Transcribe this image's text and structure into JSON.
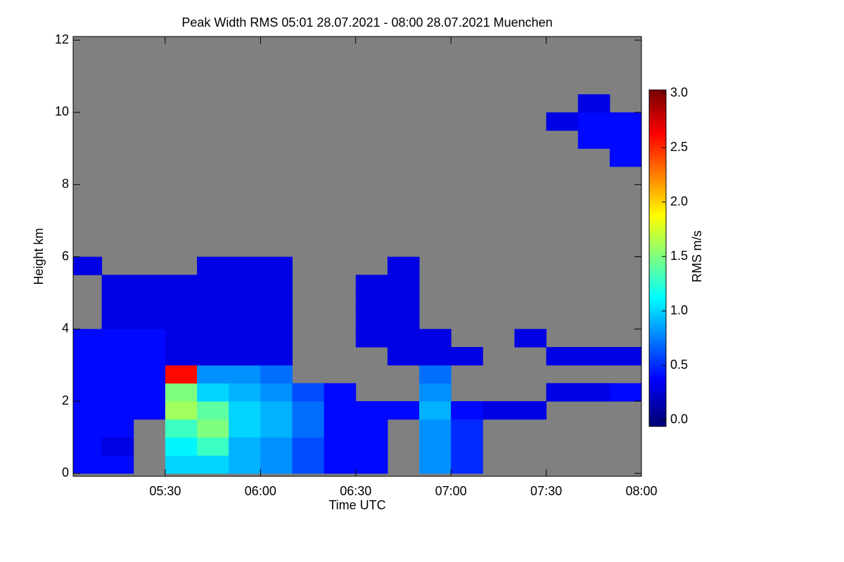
{
  "chart_data": {
    "type": "heatmap",
    "title": "Peak Width RMS   05:01 28.07.2021 - 08:00 28.07.2021 Muenchen",
    "xlabel": "Time UTC",
    "ylabel": "Height km",
    "colorbar_label": "RMS m/s",
    "background": "#808080",
    "colorscale": [
      "#00007f",
      "#0000ff",
      "#007fff",
      "#00ffff",
      "#7fff7f",
      "#ffff00",
      "#ff7f00",
      "#ff0000",
      "#7f0000"
    ],
    "x": [
      305,
      315,
      325,
      335,
      345,
      355,
      365,
      375,
      385,
      395,
      405,
      415,
      425,
      435,
      445,
      455,
      465,
      475
    ],
    "x_bin": 10,
    "y": [
      0.25,
      0.75,
      1.25,
      1.75,
      2.25,
      2.75,
      3.25,
      3.75,
      4.25,
      4.75,
      5.25,
      5.75,
      6.25,
      6.75,
      7.25,
      7.75,
      8.25,
      8.75,
      9.25,
      9.75,
      10.25,
      10.75,
      11.25,
      11.75
    ],
    "y_bin": 0.5,
    "z": [
      [
        0.4,
        0.4,
        null,
        1.0,
        1.0,
        0.9,
        0.8,
        0.6,
        0.4,
        0.4,
        null,
        0.8,
        0.5,
        null,
        null,
        null,
        null,
        null
      ],
      [
        0.4,
        0.3,
        null,
        1.1,
        1.3,
        0.9,
        0.8,
        0.6,
        0.4,
        0.4,
        null,
        0.8,
        0.5,
        null,
        null,
        null,
        null,
        null
      ],
      [
        0.4,
        0.4,
        null,
        1.3,
        1.5,
        1.0,
        0.9,
        0.7,
        0.4,
        0.4,
        null,
        0.8,
        0.5,
        null,
        null,
        null,
        null,
        null
      ],
      [
        0.4,
        0.4,
        0.4,
        1.6,
        1.4,
        1.0,
        0.9,
        0.7,
        0.4,
        0.4,
        0.4,
        0.9,
        0.4,
        0.3,
        0.3,
        null,
        null,
        null
      ],
      [
        0.4,
        0.4,
        0.4,
        1.5,
        1.0,
        0.9,
        0.8,
        0.6,
        0.4,
        null,
        null,
        0.8,
        null,
        null,
        null,
        0.3,
        0.3,
        0.4
      ],
      [
        0.4,
        0.4,
        0.4,
        2.6,
        0.8,
        0.8,
        0.7,
        null,
        null,
        null,
        null,
        0.7,
        null,
        null,
        null,
        null,
        null,
        null
      ],
      [
        0.4,
        0.4,
        0.4,
        0.3,
        0.3,
        0.3,
        0.3,
        null,
        null,
        null,
        0.3,
        0.3,
        0.3,
        null,
        null,
        0.3,
        0.3,
        0.3
      ],
      [
        0.4,
        0.4,
        0.4,
        0.3,
        0.3,
        0.3,
        0.3,
        null,
        null,
        0.3,
        0.3,
        0.3,
        null,
        null,
        0.3,
        null,
        null,
        null
      ],
      [
        null,
        0.3,
        0.3,
        0.3,
        0.3,
        0.3,
        0.3,
        null,
        null,
        0.3,
        0.3,
        null,
        null,
        null,
        null,
        null,
        null,
        null
      ],
      [
        null,
        0.3,
        0.3,
        0.3,
        0.3,
        0.3,
        0.3,
        null,
        null,
        0.3,
        0.3,
        null,
        null,
        null,
        null,
        null,
        null,
        null
      ],
      [
        null,
        0.3,
        0.3,
        0.3,
        0.3,
        0.3,
        0.3,
        null,
        null,
        0.3,
        0.3,
        null,
        null,
        null,
        null,
        null,
        null,
        null
      ],
      [
        0.3,
        null,
        null,
        null,
        0.3,
        0.3,
        0.3,
        null,
        null,
        null,
        0.3,
        null,
        null,
        null,
        null,
        null,
        null,
        null
      ],
      [
        null,
        null,
        null,
        null,
        null,
        null,
        null,
        null,
        null,
        null,
        null,
        null,
        null,
        null,
        null,
        null,
        null,
        null
      ],
      [
        null,
        null,
        null,
        null,
        null,
        null,
        null,
        null,
        null,
        null,
        null,
        null,
        null,
        null,
        null,
        null,
        null,
        null
      ],
      [
        null,
        null,
        null,
        null,
        null,
        null,
        null,
        null,
        null,
        null,
        null,
        null,
        null,
        null,
        null,
        null,
        null,
        null
      ],
      [
        null,
        null,
        null,
        null,
        null,
        null,
        null,
        null,
        null,
        null,
        null,
        null,
        null,
        null,
        null,
        null,
        null,
        null
      ],
      [
        null,
        null,
        null,
        null,
        null,
        null,
        null,
        null,
        null,
        null,
        null,
        null,
        null,
        null,
        null,
        null,
        null,
        null
      ],
      [
        null,
        null,
        null,
        null,
        null,
        null,
        null,
        null,
        null,
        null,
        null,
        null,
        null,
        null,
        null,
        null,
        null,
        0.4
      ],
      [
        null,
        null,
        null,
        null,
        null,
        null,
        null,
        null,
        null,
        null,
        null,
        null,
        null,
        null,
        null,
        null,
        0.4,
        0.4
      ],
      [
        null,
        null,
        null,
        null,
        null,
        null,
        null,
        null,
        null,
        null,
        null,
        null,
        null,
        null,
        null,
        0.3,
        0.4,
        0.4
      ],
      [
        null,
        null,
        null,
        null,
        null,
        null,
        null,
        null,
        null,
        null,
        null,
        null,
        null,
        null,
        null,
        null,
        0.3,
        null
      ],
      [
        null,
        null,
        null,
        null,
        null,
        null,
        null,
        null,
        null,
        null,
        null,
        null,
        null,
        null,
        null,
        null,
        null,
        null
      ],
      [
        null,
        null,
        null,
        null,
        null,
        null,
        null,
        null,
        null,
        null,
        null,
        null,
        null,
        null,
        null,
        null,
        null,
        null
      ],
      [
        null,
        null,
        null,
        null,
        null,
        null,
        null,
        null,
        null,
        null,
        null,
        null,
        null,
        null,
        null,
        null,
        null,
        null
      ]
    ],
    "xlim": [
      301,
      480
    ],
    "xticks": [
      {
        "value": 330,
        "label": "05:30"
      },
      {
        "value": 360,
        "label": "06:00"
      },
      {
        "value": 390,
        "label": "06:30"
      },
      {
        "value": 420,
        "label": "07:00"
      },
      {
        "value": 450,
        "label": "07:30"
      },
      {
        "value": 480,
        "label": "08:00"
      }
    ],
    "ylim": [
      -0.08,
      12.1
    ],
    "yticks": [
      0,
      2,
      4,
      6,
      8,
      10,
      12
    ],
    "zlim": [
      -0.06,
      3.03
    ],
    "zticks": [
      {
        "value": 0,
        "label": "0.0"
      },
      {
        "value": 0.5,
        "label": "0.5"
      },
      {
        "value": 1,
        "label": "1.0"
      },
      {
        "value": 1.5,
        "label": "1.5"
      },
      {
        "value": 2,
        "label": "2.0"
      },
      {
        "value": 2.5,
        "label": "2.5"
      },
      {
        "value": 3,
        "label": "3.0"
      }
    ]
  }
}
